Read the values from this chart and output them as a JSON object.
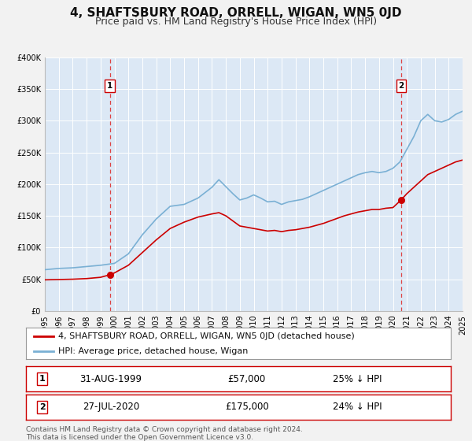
{
  "title": "4, SHAFTSBURY ROAD, ORRELL, WIGAN, WN5 0JD",
  "subtitle": "Price paid vs. HM Land Registry's House Price Index (HPI)",
  "ylim": [
    0,
    400000
  ],
  "xlim_start": 1995,
  "xlim_end": 2025,
  "yticks": [
    0,
    50000,
    100000,
    150000,
    200000,
    250000,
    300000,
    350000,
    400000
  ],
  "ytick_labels": [
    "£0",
    "£50K",
    "£100K",
    "£150K",
    "£200K",
    "£250K",
    "£300K",
    "£350K",
    "£400K"
  ],
  "xticks": [
    1995,
    1996,
    1997,
    1998,
    1999,
    2000,
    2001,
    2002,
    2003,
    2004,
    2005,
    2006,
    2007,
    2008,
    2009,
    2010,
    2011,
    2012,
    2013,
    2014,
    2015,
    2016,
    2017,
    2018,
    2019,
    2020,
    2021,
    2022,
    2023,
    2024,
    2025
  ],
  "background_color": "#f2f2f2",
  "plot_bg_color": "#dce8f5",
  "grid_color": "#ffffff",
  "red_line_color": "#cc0000",
  "blue_line_color": "#7ab0d4",
  "marker1_x": 1999.667,
  "marker1_y": 57000,
  "marker2_x": 2020.583,
  "marker2_y": 175000,
  "vline1_x": 1999.667,
  "vline2_x": 2020.583,
  "vline_color": "#dd4444",
  "legend_label_red": "4, SHAFTSBURY ROAD, ORRELL, WIGAN, WN5 0JD (detached house)",
  "legend_label_blue": "HPI: Average price, detached house, Wigan",
  "annotation1_date": "31-AUG-1999",
  "annotation1_price": "£57,000",
  "annotation1_hpi": "25% ↓ HPI",
  "annotation2_date": "27-JUL-2020",
  "annotation2_price": "£175,000",
  "annotation2_hpi": "24% ↓ HPI",
  "footer_text": "Contains HM Land Registry data © Crown copyright and database right 2024.\nThis data is licensed under the Open Government Licence v3.0.",
  "title_fontsize": 11,
  "subtitle_fontsize": 9,
  "tick_fontsize": 7,
  "legend_fontsize": 8,
  "annot_fontsize": 8.5,
  "footer_fontsize": 6.5,
  "hpi_x": [
    1995.0,
    1996.0,
    1997.0,
    1998.0,
    1999.0,
    2000.0,
    2001.0,
    2002.0,
    2003.0,
    2004.0,
    2005.0,
    2006.0,
    2007.0,
    2007.5,
    2008.5,
    2009.0,
    2009.5,
    2010.0,
    2010.5,
    2011.0,
    2011.5,
    2012.0,
    2012.5,
    2013.0,
    2013.5,
    2014.0,
    2014.5,
    2015.0,
    2015.5,
    2016.0,
    2016.5,
    2017.0,
    2017.5,
    2018.0,
    2018.5,
    2019.0,
    2019.5,
    2020.0,
    2020.5,
    2021.0,
    2021.5,
    2022.0,
    2022.5,
    2023.0,
    2023.5,
    2024.0,
    2024.5,
    2025.0
  ],
  "hpi_y": [
    65000,
    67000,
    68000,
    70000,
    72000,
    75000,
    90000,
    120000,
    145000,
    165000,
    168000,
    178000,
    195000,
    207000,
    185000,
    175000,
    178000,
    183000,
    178000,
    172000,
    173000,
    168000,
    172000,
    174000,
    176000,
    180000,
    185000,
    190000,
    195000,
    200000,
    205000,
    210000,
    215000,
    218000,
    220000,
    218000,
    220000,
    225000,
    235000,
    255000,
    275000,
    300000,
    310000,
    300000,
    298000,
    302000,
    310000,
    315000
  ],
  "red_x": [
    1995.0,
    1996.0,
    1997.0,
    1998.0,
    1999.0,
    1999.667,
    2000.0,
    2001.0,
    2002.0,
    2003.0,
    2004.0,
    2005.0,
    2006.0,
    2007.0,
    2007.5,
    2008.0,
    2008.5,
    2009.0,
    2009.5,
    2010.0,
    2010.5,
    2011.0,
    2011.5,
    2012.0,
    2012.5,
    2013.0,
    2013.5,
    2014.0,
    2014.5,
    2015.0,
    2015.5,
    2016.0,
    2016.5,
    2017.0,
    2017.5,
    2018.0,
    2018.5,
    2019.0,
    2019.5,
    2020.0,
    2020.583,
    2021.0,
    2021.5,
    2022.0,
    2022.5,
    2023.0,
    2023.5,
    2024.0,
    2024.5,
    2025.0
  ],
  "red_y": [
    49000,
    49500,
    50000,
    51000,
    53000,
    57000,
    60000,
    72000,
    92000,
    112000,
    130000,
    140000,
    148000,
    153000,
    155000,
    150000,
    142000,
    134000,
    132000,
    130000,
    128000,
    126000,
    127000,
    125000,
    127000,
    128000,
    130000,
    132000,
    135000,
    138000,
    142000,
    146000,
    150000,
    153000,
    156000,
    158000,
    160000,
    160000,
    162000,
    163000,
    175000,
    185000,
    195000,
    205000,
    215000,
    220000,
    225000,
    230000,
    235000,
    238000
  ]
}
